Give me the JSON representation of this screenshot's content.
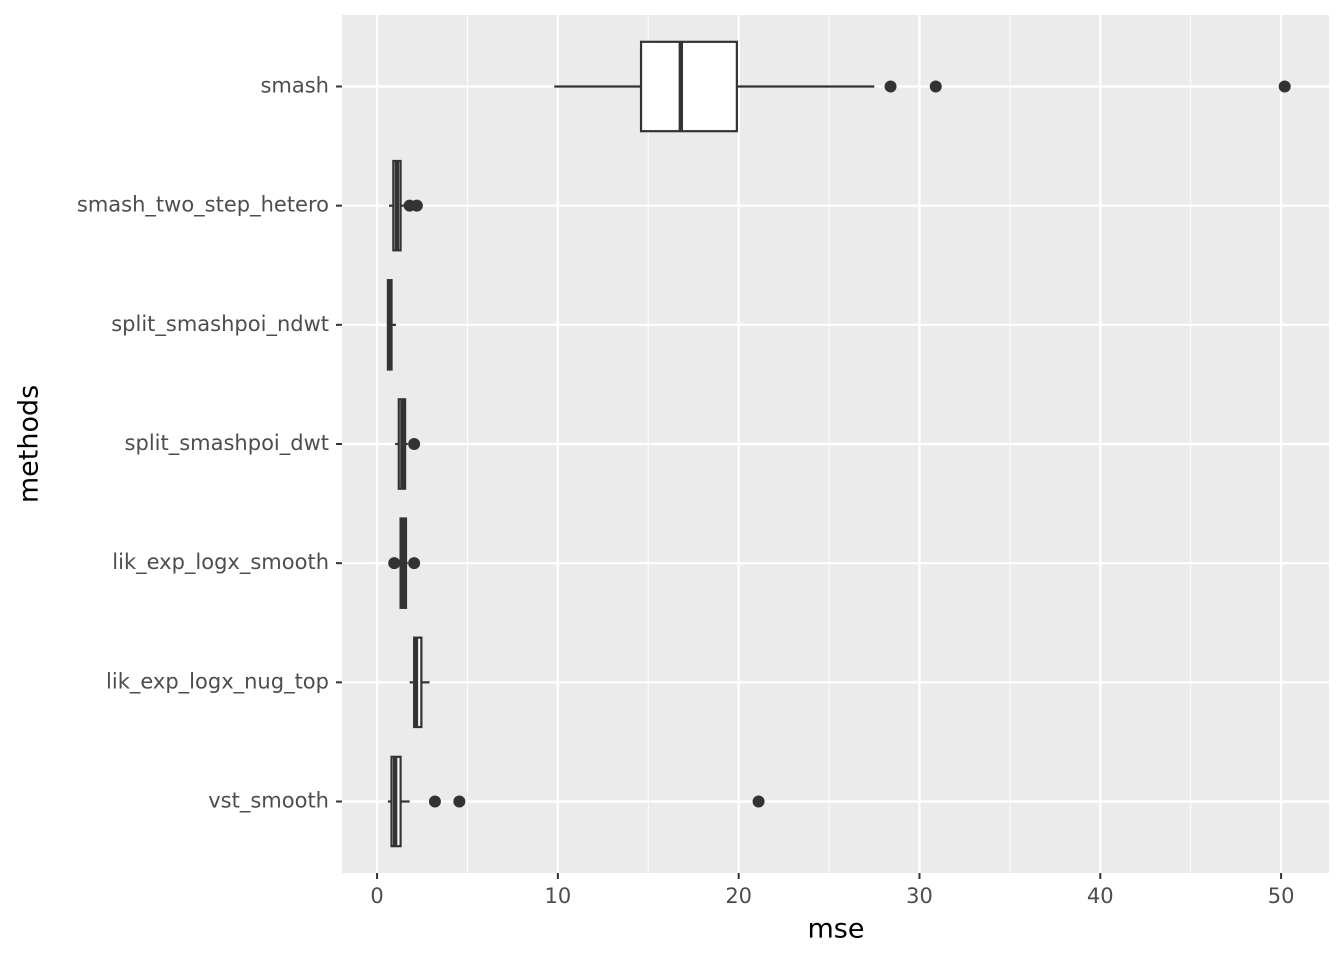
{
  "chart_data": {
    "type": "boxplot",
    "orientation": "horizontal",
    "x_label": "mse",
    "y_label": "methods",
    "categories": [
      "smash",
      "smash_two_step_hetero",
      "split_smashpoi_ndwt",
      "split_smashpoi_dwt",
      "lik_exp_logx_smooth",
      "lik_exp_logx_nug_top",
      "vst_smooth"
    ],
    "boxes": [
      {
        "min": 9.8,
        "q1": 14.6,
        "median": 16.8,
        "q3": 19.9,
        "max": 27.5,
        "outliers": [
          28.4,
          30.9,
          50.2
        ]
      },
      {
        "min": 0.66,
        "q1": 0.9,
        "median": 1.1,
        "q3": 1.3,
        "max": 1.55,
        "outliers": [
          1.8,
          2.2
        ]
      },
      {
        "min": 0.6,
        "q1": 0.6,
        "median": 0.7,
        "q3": 0.8,
        "max": 1.05,
        "outliers": []
      },
      {
        "min": 1.0,
        "q1": 1.2,
        "median": 1.4,
        "q3": 1.55,
        "max": 1.7,
        "outliers": [
          2.05
        ]
      },
      {
        "min": 1.15,
        "q1": 1.3,
        "median": 1.45,
        "q3": 1.6,
        "max": 1.7,
        "outliers": [
          0.95,
          2.05
        ]
      },
      {
        "min": 1.8,
        "q1": 2.05,
        "median": 2.15,
        "q3": 2.45,
        "max": 2.9,
        "outliers": []
      },
      {
        "min": 0.6,
        "q1": 0.8,
        "median": 1.0,
        "q3": 1.3,
        "max": 1.8,
        "outliers": [
          3.2,
          4.55,
          21.1
        ]
      }
    ],
    "color": "#333333",
    "fill": "#ffffff",
    "xlim": [
      -1.94,
      52.65
    ],
    "xticks": [
      0,
      10,
      20,
      30,
      40,
      50
    ],
    "grid": true
  }
}
